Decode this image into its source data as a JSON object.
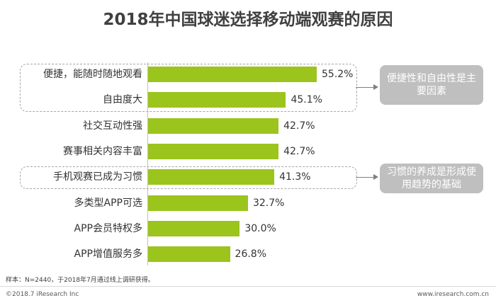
{
  "colors": {
    "bar": "#9bc41d",
    "callout_bg": "#bfbfbf",
    "title": "#404040"
  },
  "chart_data": {
    "type": "bar",
    "orientation": "horizontal",
    "title": "2018年中国球迷选择移动端观赛的原因",
    "categories": [
      "便捷，能随时随地观看",
      "自由度大",
      "社交互动性强",
      "赛事相关内容丰富",
      "手机观赛已成为习惯",
      "多类型APP可选",
      "APP会员特权多",
      "APP增值服务多"
    ],
    "values": [
      55.2,
      45.1,
      42.7,
      42.7,
      41.3,
      32.7,
      30.0,
      26.8
    ],
    "value_labels": [
      "55.2%",
      "45.1%",
      "42.7%",
      "42.7%",
      "41.3%",
      "32.7%",
      "30.0%",
      "26.8%"
    ],
    "unit": "%",
    "grid": false,
    "xlim": [
      0,
      60
    ]
  },
  "callouts": [
    {
      "text": "便捷性和自由性是主要因素",
      "covers": [
        0,
        1
      ]
    },
    {
      "text": "习惯的养成是形成使用趋势的基础",
      "covers": [
        4,
        4
      ]
    }
  ],
  "note": "样本：N=2440，于2018年7月通过线上调研获得。",
  "footer": {
    "left": "©2018.7 iResearch Inc",
    "right": "www.iresearch.com.cn"
  }
}
